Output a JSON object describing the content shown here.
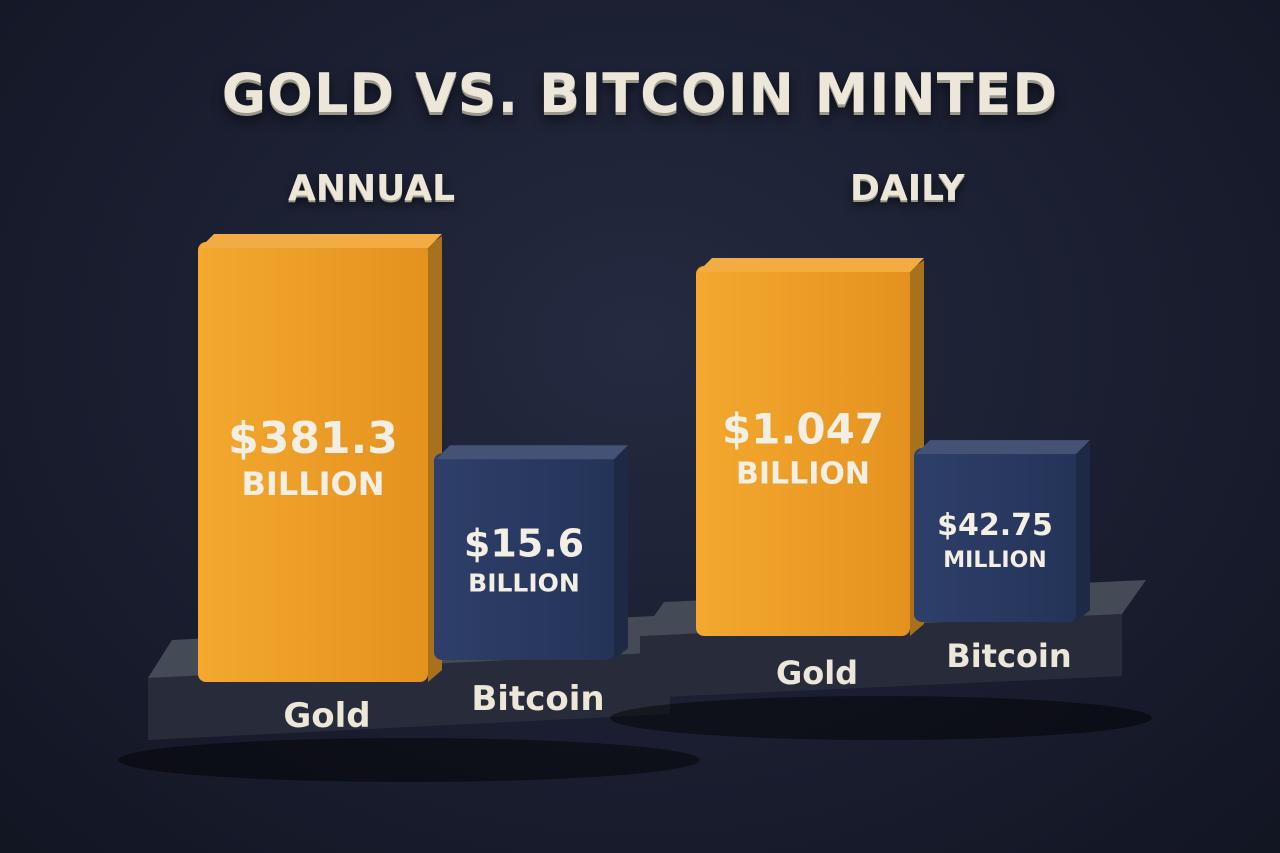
{
  "title": "GOLD VS. BITCOIN MINTED",
  "colors": {
    "gold": "#f0a129",
    "bitcoin": "#2a3a62",
    "text": "#ede7da",
    "pedestal": "#2c3140"
  },
  "chart_data": [
    {
      "type": "bar",
      "title": "ANNUAL",
      "categories": [
        "Gold",
        "Bitcoin"
      ],
      "values": [
        381300000000,
        15600000000
      ],
      "value_labels": [
        {
          "amount": "$381.3",
          "unit": "BILLION"
        },
        {
          "amount": "$15.6",
          "unit": "BILLION"
        }
      ]
    },
    {
      "type": "bar",
      "title": "DAILY",
      "categories": [
        "Gold",
        "Bitcoin"
      ],
      "values": [
        1047000000,
        42750000
      ],
      "value_labels": [
        {
          "amount": "$1.047",
          "unit": "BILLION"
        },
        {
          "amount": "$42.75",
          "unit": "MILLION"
        }
      ]
    }
  ]
}
